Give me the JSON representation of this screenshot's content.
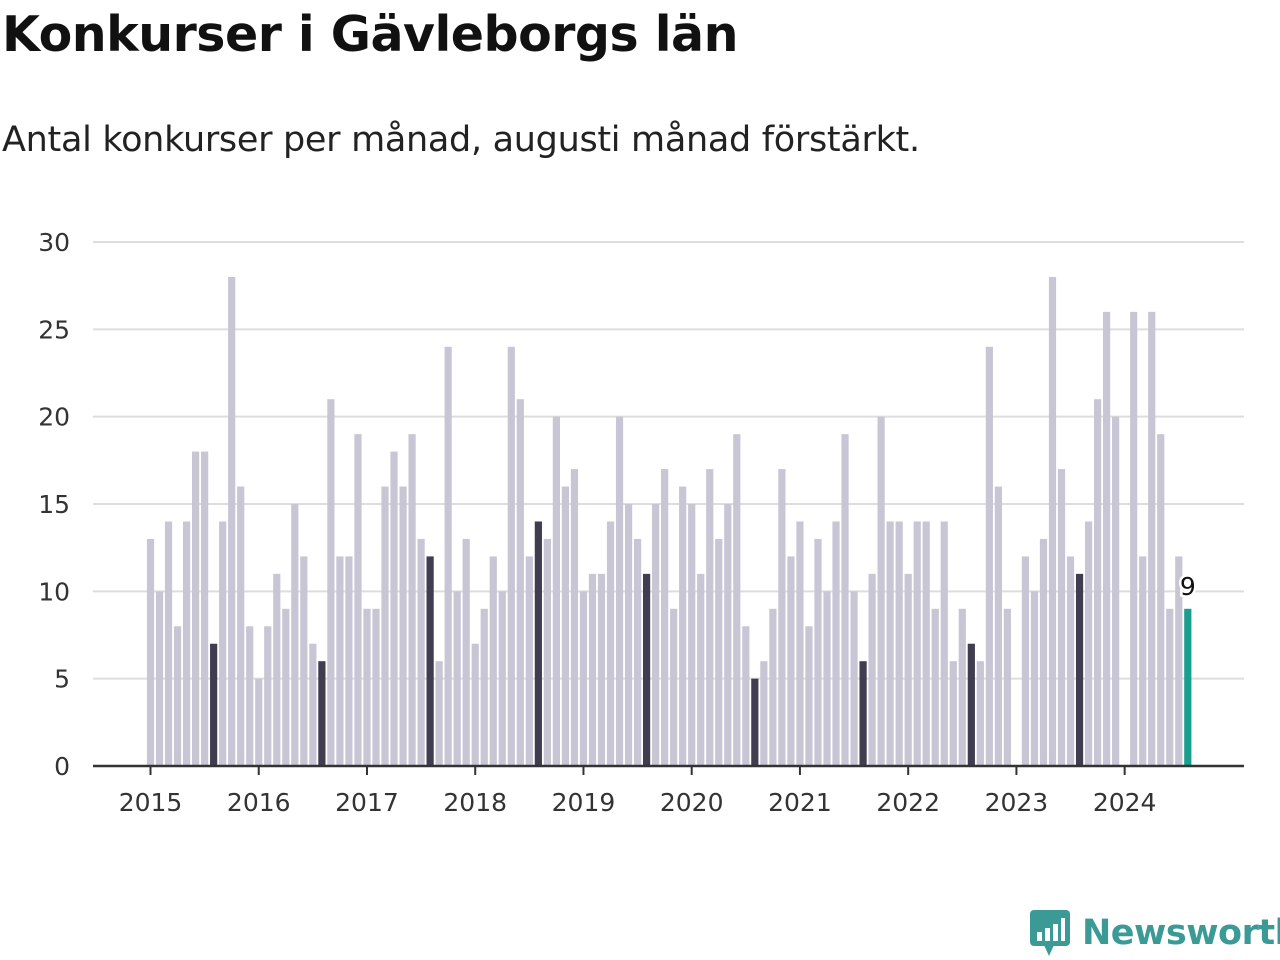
{
  "title": "Konkurser i Gävleborgs län",
  "subtitle": "Antal konkurser per månad, augusti månad förstärkt.",
  "brand": "Newsworthy",
  "colors": {
    "regular": "#c8c6d4",
    "august": "#3f3d4f",
    "latest": "#1a9e8f",
    "grid": "#dddddd",
    "axis": "#333333",
    "brand": "#3c9a96"
  },
  "chart_data": {
    "type": "bar",
    "title": "Konkurser i Gävleborgs län",
    "subtitle": "Antal konkurser per månad, augusti månad förstärkt.",
    "xlabel": "",
    "ylabel": "",
    "ylim": [
      0,
      30
    ],
    "yticks": [
      0,
      5,
      10,
      15,
      20,
      25,
      30
    ],
    "grid": true,
    "start": "2015-01",
    "end": "2024-08",
    "x_tick_labels": [
      "2015",
      "2016",
      "2017",
      "2018",
      "2019",
      "2020",
      "2021",
      "2022",
      "2023",
      "2024"
    ],
    "highlight_month": "augusti",
    "series": [
      {
        "values": [
          13,
          10,
          14,
          8,
          14,
          18,
          18,
          7,
          14,
          28,
          16,
          8,
          5,
          8,
          11,
          9,
          15,
          12,
          7,
          6,
          21,
          12,
          12,
          19,
          9,
          9,
          16,
          18,
          16,
          19,
          13,
          12,
          6,
          24,
          10,
          13,
          7,
          9,
          12,
          10,
          24,
          21,
          12,
          14,
          13,
          20,
          16,
          17,
          10,
          11,
          11,
          14,
          20,
          15,
          13,
          11,
          15,
          17,
          9,
          16,
          15,
          11,
          17,
          13,
          15,
          19,
          8,
          5,
          6,
          9,
          17,
          12,
          14,
          8,
          13,
          10,
          14,
          19,
          10,
          6,
          11,
          20,
          14,
          14,
          11,
          14,
          14,
          9,
          14,
          6,
          9,
          7,
          6,
          24,
          16,
          9,
          0,
          12,
          10,
          13,
          28,
          17,
          12,
          11,
          14,
          21,
          26,
          20,
          0,
          26,
          12,
          26,
          19,
          9,
          12,
          9
        ]
      }
    ],
    "annotations": [
      {
        "month": "2024-08",
        "text": "9"
      }
    ]
  }
}
